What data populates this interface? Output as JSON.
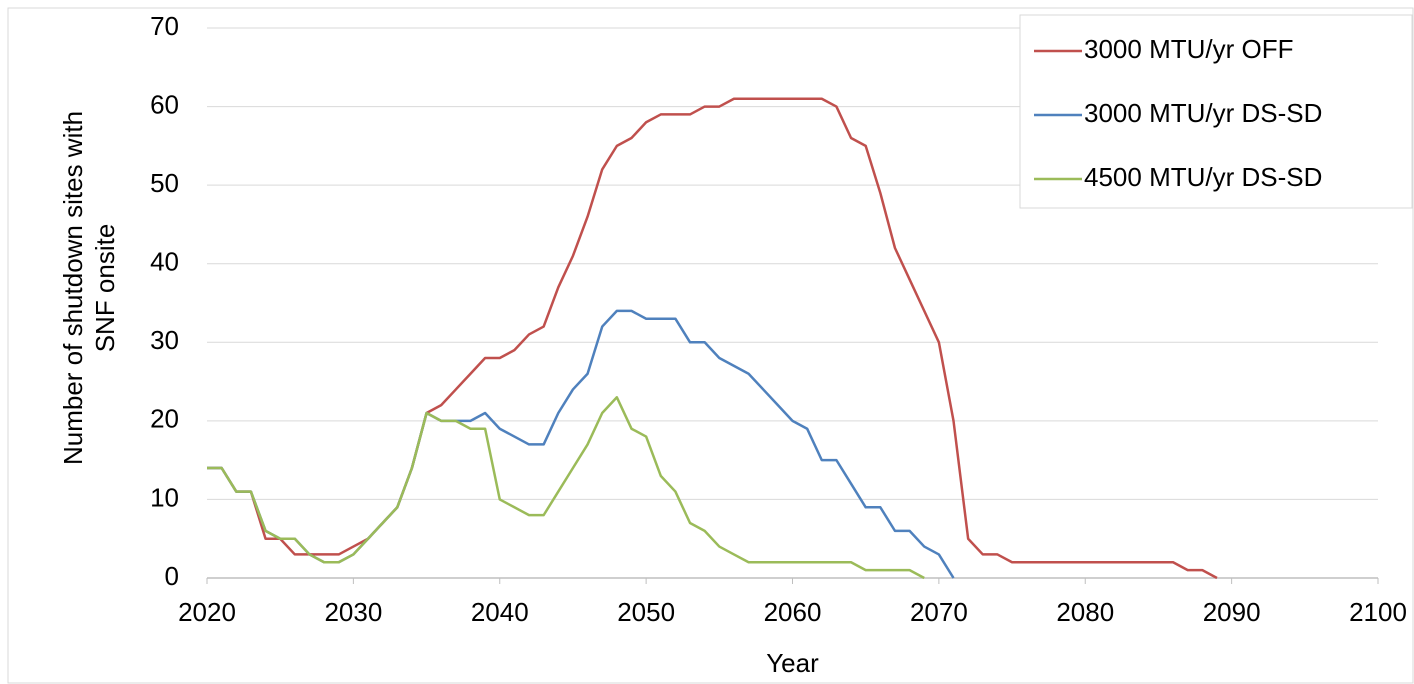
{
  "chart_data": {
    "type": "line",
    "x_label": "Year",
    "y_label": [
      "Number of shutdown sites with",
      "SNF onsite"
    ],
    "x": [
      2020,
      2021,
      2022,
      2023,
      2024,
      2025,
      2026,
      2027,
      2028,
      2029,
      2030,
      2031,
      2032,
      2033,
      2034,
      2035,
      2036,
      2037,
      2038,
      2039,
      2040,
      2041,
      2042,
      2043,
      2044,
      2045,
      2046,
      2047,
      2048,
      2049,
      2050,
      2051,
      2052,
      2053,
      2054,
      2055,
      2056,
      2057,
      2058,
      2059,
      2060,
      2061,
      2062,
      2063,
      2064,
      2065,
      2066,
      2067,
      2068,
      2069,
      2070,
      2071,
      2072,
      2073,
      2074,
      2075,
      2076,
      2077,
      2078,
      2079,
      2080,
      2081,
      2082,
      2083,
      2084,
      2085,
      2086,
      2087,
      2088,
      2089
    ],
    "series": [
      {
        "name": "3000 MTU/yr OFF",
        "color": "#c0504d",
        "values": [
          14,
          14,
          11,
          11,
          5,
          5,
          3,
          3,
          3,
          3,
          4,
          5,
          7,
          9,
          14,
          21,
          22,
          24,
          26,
          28,
          28,
          29,
          31,
          32,
          37,
          41,
          46,
          52,
          55,
          56,
          58,
          59,
          59,
          59,
          60,
          60,
          61,
          61,
          61,
          61,
          61,
          61,
          61,
          60,
          56,
          55,
          49,
          42,
          38,
          34,
          30,
          20,
          5,
          3,
          3,
          2,
          2,
          2,
          2,
          2,
          2,
          2,
          2,
          2,
          2,
          2,
          2,
          1,
          1,
          0
        ]
      },
      {
        "name": "3000 MTU/yr DS-SD",
        "color": "#4f81bd",
        "values": [
          14,
          14,
          11,
          11,
          6,
          5,
          5,
          3,
          2,
          2,
          3,
          5,
          7,
          9,
          14,
          21,
          20,
          20,
          20,
          21,
          19,
          18,
          17,
          17,
          21,
          24,
          26,
          32,
          34,
          34,
          33,
          33,
          33,
          30,
          30,
          28,
          27,
          26,
          24,
          22,
          20,
          19,
          15,
          15,
          12,
          9,
          9,
          6,
          6,
          4,
          3,
          0,
          null,
          null,
          null,
          null,
          null,
          null,
          null,
          null,
          null,
          null,
          null,
          null,
          null,
          null,
          null,
          null,
          null,
          null
        ]
      },
      {
        "name": "4500 MTU/yr DS-SD",
        "color": "#9bbb59",
        "values": [
          14,
          14,
          11,
          11,
          6,
          5,
          5,
          3,
          2,
          2,
          3,
          5,
          7,
          9,
          14,
          21,
          20,
          20,
          19,
          19,
          10,
          9,
          8,
          8,
          11,
          14,
          17,
          21,
          23,
          19,
          18,
          13,
          11,
          7,
          6,
          4,
          3,
          2,
          2,
          2,
          2,
          2,
          2,
          2,
          2,
          1,
          1,
          1,
          1,
          0,
          null,
          null,
          null,
          null,
          null,
          null,
          null,
          null,
          null,
          null,
          null,
          null,
          null,
          null,
          null,
          null,
          null,
          null,
          null,
          null
        ]
      }
    ],
    "xlim": [
      2020,
      2100
    ],
    "xticks": [
      2020,
      2030,
      2040,
      2050,
      2060,
      2070,
      2080,
      2090,
      2100
    ],
    "ylim": [
      0,
      70
    ],
    "yticks": [
      0,
      10,
      20,
      30,
      40,
      50,
      60,
      70
    ],
    "grid": true,
    "legend": "top-right"
  }
}
